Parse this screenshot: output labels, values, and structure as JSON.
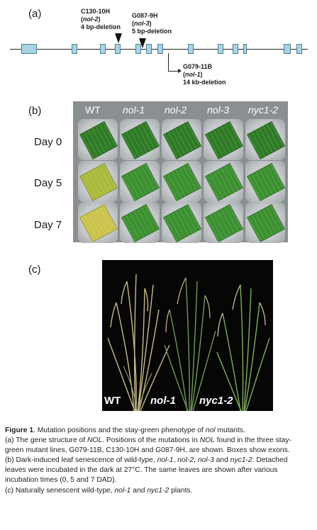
{
  "panels": {
    "a": {
      "label": "(a)"
    },
    "b": {
      "label": "(b)"
    },
    "c": {
      "label": "(c)"
    }
  },
  "gene": {
    "mutations": [
      {
        "line1": "C130-10H",
        "line2_pre": "(",
        "line2_it": "nol-2",
        "line2_post": ")",
        "line3": "4 bp-deletion"
      },
      {
        "line1": "G087-9H",
        "line2_pre": "(",
        "line2_it": "nol-3",
        "line2_post": ")",
        "line3": "5 bp-deletion"
      },
      {
        "line1": "G079-11B",
        "line2_pre": "(",
        "line2_it": "nol-1",
        "line2_post": ")",
        "line3": "14 kb-deletion"
      }
    ]
  },
  "leaf_assay": {
    "columns": [
      "WT",
      "nol-1",
      "nol-2",
      "nol-3",
      "nyc1-2"
    ],
    "rows": [
      "Day 0",
      "Day 5",
      "Day 7"
    ]
  },
  "plants": {
    "labels": [
      "WT",
      "nol-1",
      "nyc1-2"
    ]
  },
  "caption": {
    "title_bold": "Figure 1",
    "title_rest_1": ". Mutation positions and the stay-green phenotype of ",
    "title_it": "nol",
    "title_rest_2": " mutants.",
    "a_1": "(a) The gene structure of ",
    "a_it1": "NOL",
    "a_2": ". Positions of the mutations in ",
    "a_it2": "NOL",
    "a_3": " found in the three stay-green mutant lines, G079-11B, C130-10H and G087-9H, are shown. Boxes show exons.",
    "b_1": "(b) Dark-induced leaf senescence of wild-type, ",
    "b_it1": "nol-1",
    "b_2": ", ",
    "b_it2": "nol-2",
    "b_3": ", ",
    "b_it3": "nol-3",
    "b_4": " and ",
    "b_it4": "nyc1-2",
    "b_5": ". Detached leaves were incubated in the dark at 27°C. The same leaves are shown after various incubation times (0, 5 and 7 DAD).",
    "c_1": "(c) Naturally senescent wild-type, ",
    "c_it1": "nol-1",
    "c_2": " and ",
    "c_it2": "nyc1-2",
    "c_3": " plants."
  }
}
